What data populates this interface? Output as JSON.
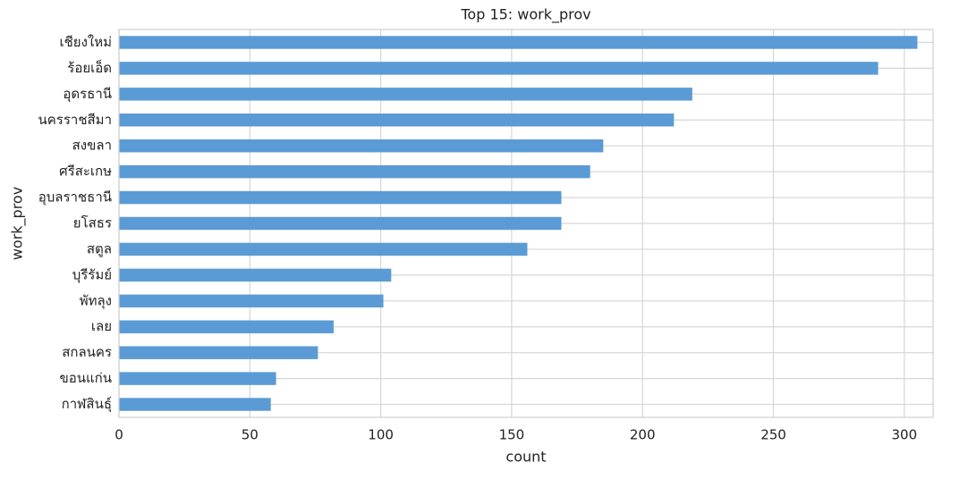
{
  "chart_data": {
    "type": "barh",
    "title": "Top 15: work_prov",
    "xlabel": "count",
    "ylabel": "work_prov",
    "categories": [
      "เชียงใหม่",
      "ร้อยเอ็ด",
      "อุดรธานี",
      "นครราชสีมา",
      "สงขลา",
      "ศรีสะเกษ",
      "อุบลราชธานี",
      "ยโสธร",
      "สตูล",
      "บุรีรัมย์",
      "พัทลุง",
      "เลย",
      "สกลนคร",
      "ขอนแก่น",
      "กาฬสินธุ์"
    ],
    "values": [
      305,
      290,
      219,
      212,
      185,
      180,
      169,
      169,
      156,
      104,
      101,
      82,
      76,
      60,
      58
    ],
    "color": "#5b9bd5",
    "xlim": [
      0,
      311
    ],
    "xticks": [
      0,
      50,
      100,
      150,
      200,
      250,
      300
    ],
    "grid": true
  }
}
